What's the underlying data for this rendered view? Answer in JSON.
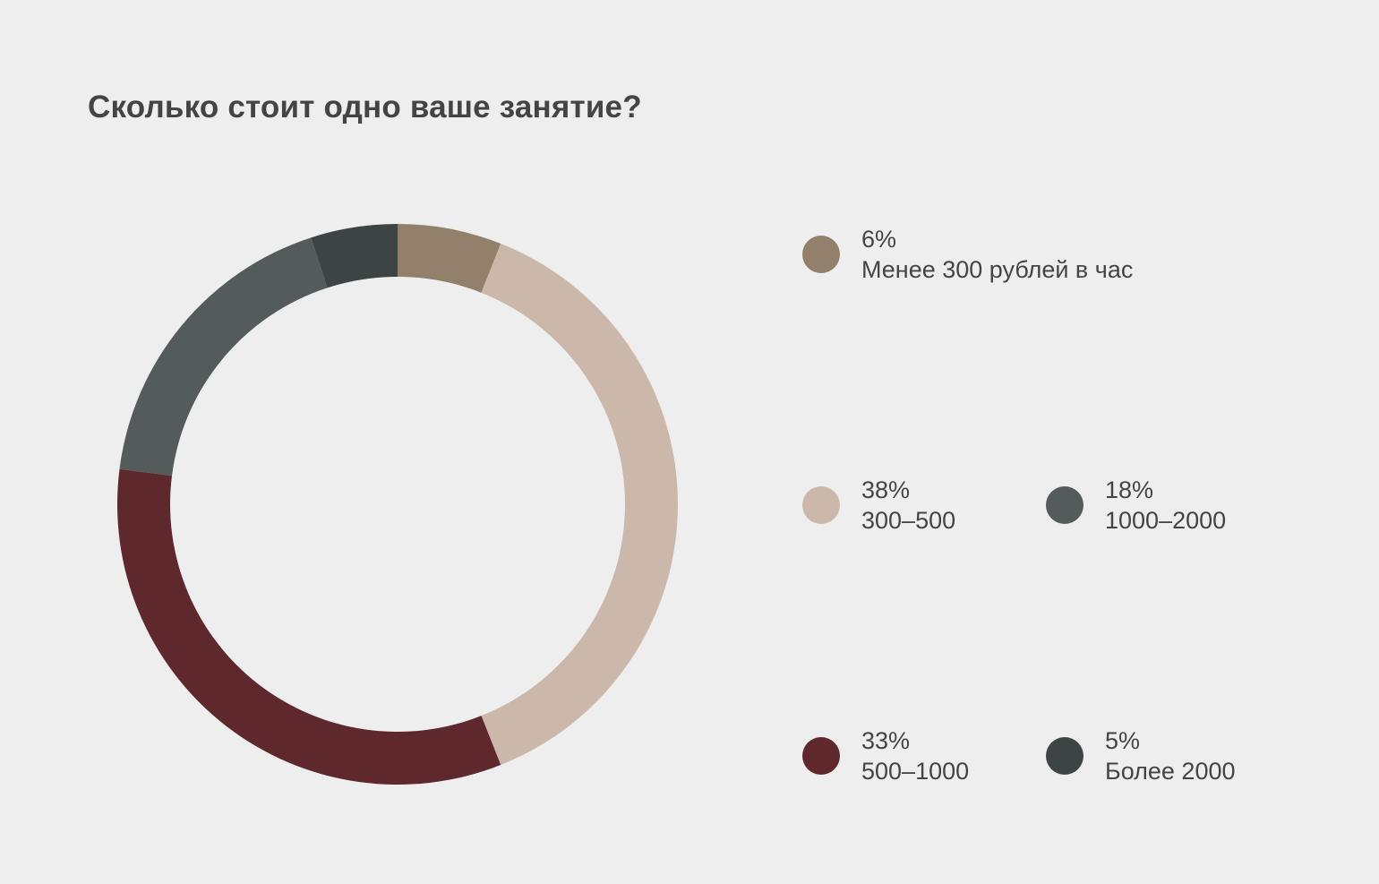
{
  "chart_data": {
    "type": "pie",
    "style": "donut",
    "title": "Сколько стоит одно ваше занятие?",
    "slices": [
      {
        "percent_label": "6%",
        "value": 6,
        "label": "Менее 300 рублей в час",
        "color": "#92806a"
      },
      {
        "percent_label": "38%",
        "value": 38,
        "label": "300–500",
        "color": "#cbb8aa"
      },
      {
        "percent_label": "33%",
        "value": 33,
        "label": "500–1000",
        "color": "#5e282c"
      },
      {
        "percent_label": "18%",
        "value": 18,
        "label": "1000–2000",
        "color": "#535c5a"
      },
      {
        "percent_label": "5%",
        "value": 5,
        "label": "Более 2000",
        "color": "#3d4444"
      }
    ],
    "legend_position": "right",
    "start_angle": "top, clockwise"
  }
}
